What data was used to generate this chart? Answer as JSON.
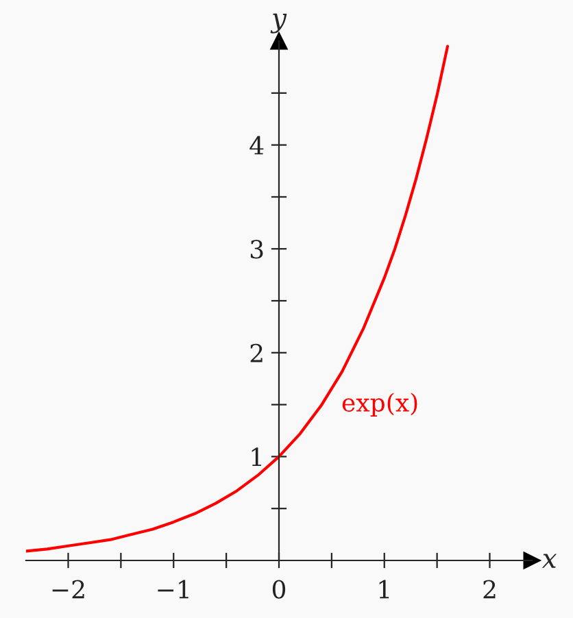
{
  "chart_data": {
    "type": "line",
    "xlabel": "x",
    "ylabel": "y",
    "x": [
      -2.4,
      -2.2,
      -2.0,
      -1.8,
      -1.6,
      -1.4,
      -1.2,
      -1.0,
      -0.8,
      -0.6,
      -0.4,
      -0.2,
      0,
      0.2,
      0.4,
      0.6,
      0.8,
      1.0,
      1.1,
      1.2,
      1.3,
      1.4,
      1.5,
      1.6
    ],
    "series": [
      {
        "color": "#ff0000",
        "values": [
          0.09,
          0.11,
          0.14,
          0.17,
          0.2,
          0.25,
          0.3,
          0.37,
          0.45,
          0.55,
          0.67,
          0.82,
          1.0,
          1.22,
          1.49,
          1.82,
          2.23,
          2.72,
          3.0,
          3.32,
          3.67,
          4.06,
          4.48,
          4.95
        ]
      }
    ],
    "annotations": [
      "exp(x)"
    ],
    "xlim": [
      -2.4,
      2.4
    ],
    "ylim": [
      0,
      5
    ],
    "xticks": [
      {
        "value": -2,
        "label": "−2"
      },
      {
        "value": -1.5,
        "label": null
      },
      {
        "value": -1,
        "label": "−1"
      },
      {
        "value": -0.5,
        "label": null
      },
      {
        "value": 0,
        "label": "0"
      },
      {
        "value": 0.5,
        "label": null
      },
      {
        "value": 1,
        "label": "1"
      },
      {
        "value": 1.5,
        "label": null
      },
      {
        "value": 2,
        "label": "2"
      }
    ],
    "yticks": [
      {
        "value": 0.5,
        "label": null
      },
      {
        "value": 1,
        "label": "1"
      },
      {
        "value": 1.5,
        "label": null
      },
      {
        "value": 2,
        "label": "2"
      },
      {
        "value": 2.5,
        "label": null
      },
      {
        "value": 3,
        "label": "3"
      },
      {
        "value": 3.5,
        "label": null
      },
      {
        "value": 4,
        "label": "4"
      },
      {
        "value": 4.5,
        "label": null
      }
    ],
    "grid": false,
    "legend": false,
    "line_style": "solid",
    "marker": "none"
  }
}
